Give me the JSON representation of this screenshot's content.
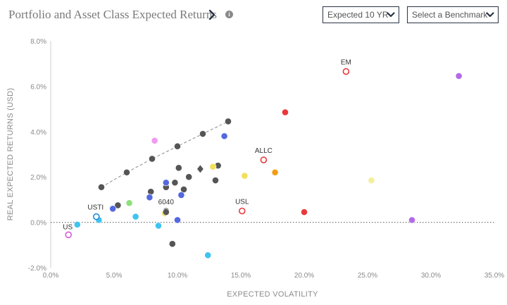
{
  "header": {
    "title": "Portfolio and Asset Class Expected Returns",
    "horizon_dropdown": "Expected 10 YR",
    "benchmark_dropdown": "Select a Benchmark"
  },
  "colors": {
    "axis_text": "#8a8a8a",
    "dark_gray": "#555555",
    "blue": "#5468e0",
    "light_blue": "#3fc4f0",
    "pink": "#f09cf0",
    "green": "#8de07a",
    "yellow": "#f2e05a",
    "light_yellow": "#f5ee9c",
    "orange": "#f39c12",
    "red": "#e8393c",
    "purple": "#b36ae6",
    "outline_red": "#e8393c",
    "outline_blue": "#1f8ad6",
    "outline_pink": "#d65adb"
  },
  "chart_data": {
    "type": "scatter",
    "xlabel": "EXPECTED VOLATILITY",
    "ylabel": "REAL EXPECTED RETURNS (USD)",
    "xlim": [
      0,
      35
    ],
    "ylim": [
      -2,
      8
    ],
    "x_ticks": [
      "0.0%",
      "5.0%",
      "10.0%",
      "15.0%",
      "20.0%",
      "25.0%",
      "30.0%",
      "35.0%"
    ],
    "y_ticks": [
      "-2.0%",
      "0.0%",
      "2.0%",
      "4.0%",
      "6.0%",
      "8.0%"
    ],
    "zero_line": "dotted",
    "frontier_line": {
      "style": "dashed",
      "points": [
        [
          4.0,
          1.55
        ],
        [
          6.0,
          2.2
        ],
        [
          8.0,
          2.8
        ],
        [
          10.0,
          3.35
        ],
        [
          12.0,
          3.9
        ],
        [
          14.0,
          4.45
        ]
      ]
    },
    "points": [
      {
        "x": 4.0,
        "y": 1.55,
        "color": "dark_gray"
      },
      {
        "x": 6.0,
        "y": 2.2,
        "color": "dark_gray"
      },
      {
        "x": 8.0,
        "y": 2.8,
        "color": "dark_gray"
      },
      {
        "x": 10.0,
        "y": 3.35,
        "color": "dark_gray"
      },
      {
        "x": 12.0,
        "y": 3.9,
        "color": "dark_gray"
      },
      {
        "x": 14.0,
        "y": 4.45,
        "color": "dark_gray"
      },
      {
        "x": 5.3,
        "y": 0.75,
        "color": "dark_gray"
      },
      {
        "x": 7.9,
        "y": 1.35,
        "color": "dark_gray"
      },
      {
        "x": 9.1,
        "y": 1.55,
        "color": "dark_gray"
      },
      {
        "x": 9.8,
        "y": 1.75,
        "color": "dark_gray"
      },
      {
        "x": 10.1,
        "y": 2.4,
        "color": "dark_gray"
      },
      {
        "x": 10.5,
        "y": 1.45,
        "color": "dark_gray"
      },
      {
        "x": 10.9,
        "y": 2.0,
        "color": "dark_gray"
      },
      {
        "x": 13.0,
        "y": 1.85,
        "color": "dark_gray"
      },
      {
        "x": 13.2,
        "y": 2.5,
        "color": "dark_gray"
      },
      {
        "x": 9.1,
        "y": 0.5,
        "color": "dark_gray"
      },
      {
        "x": 9.6,
        "y": -0.95,
        "color": "dark_gray"
      },
      {
        "x": 4.9,
        "y": 0.6,
        "color": "blue"
      },
      {
        "x": 7.8,
        "y": 1.1,
        "color": "blue"
      },
      {
        "x": 9.1,
        "y": 1.75,
        "color": "blue"
      },
      {
        "x": 10.3,
        "y": 1.2,
        "color": "blue"
      },
      {
        "x": 10.0,
        "y": 0.1,
        "color": "blue"
      },
      {
        "x": 13.7,
        "y": 3.8,
        "color": "blue"
      },
      {
        "x": 2.1,
        "y": -0.1,
        "color": "light_blue"
      },
      {
        "x": 3.8,
        "y": 0.1,
        "color": "light_blue"
      },
      {
        "x": 6.7,
        "y": 0.25,
        "color": "light_blue"
      },
      {
        "x": 8.5,
        "y": -0.15,
        "color": "light_blue"
      },
      {
        "x": 12.4,
        "y": -1.45,
        "color": "light_blue"
      },
      {
        "x": 6.2,
        "y": 0.85,
        "color": "green"
      },
      {
        "x": 8.2,
        "y": 3.6,
        "color": "pink"
      },
      {
        "x": 9.0,
        "y": 0.4,
        "color": "yellow"
      },
      {
        "x": 12.8,
        "y": 2.45,
        "color": "yellow"
      },
      {
        "x": 15.3,
        "y": 2.05,
        "color": "yellow"
      },
      {
        "x": 25.3,
        "y": 1.85,
        "color": "light_yellow"
      },
      {
        "x": 17.7,
        "y": 2.2,
        "color": "orange"
      },
      {
        "x": 18.5,
        "y": 4.85,
        "color": "red"
      },
      {
        "x": 20.0,
        "y": 0.45,
        "color": "red"
      },
      {
        "x": 28.5,
        "y": 0.1,
        "color": "purple"
      },
      {
        "x": 32.2,
        "y": 6.45,
        "color": "purple"
      }
    ],
    "markers": [
      {
        "x": 11.8,
        "y": 2.35,
        "shape": "diamond",
        "color": "dark_gray"
      }
    ],
    "labeled_points": [
      {
        "label": "EM",
        "x": 23.3,
        "y": 6.65,
        "style": "hollow",
        "color": "outline_red"
      },
      {
        "label": "ALLC",
        "x": 16.8,
        "y": 2.75,
        "style": "hollow",
        "color": "outline_red"
      },
      {
        "label": "USL",
        "x": 15.1,
        "y": 0.5,
        "style": "hollow",
        "color": "outline_red"
      },
      {
        "label": "USTI",
        "x": 3.6,
        "y": 0.25,
        "style": "hollow",
        "color": "outline_blue"
      },
      {
        "label": "US",
        "x": 1.4,
        "y": -0.55,
        "style": "hollow",
        "color": "outline_pink"
      },
      {
        "label": "6040",
        "x": 9.1,
        "y": 0.45,
        "style": "marked",
        "color": "dark_gray"
      }
    ]
  }
}
